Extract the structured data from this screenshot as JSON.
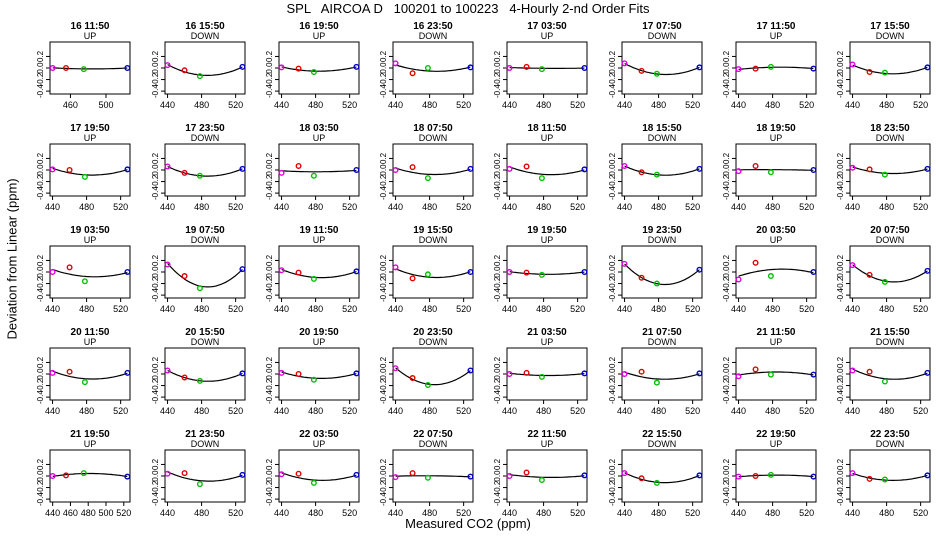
{
  "title": "SPL   AIRCOA D   100201 to 100223   4-Hourly 2-nd Order Fits",
  "xlabel": "Measured CO2 (ppm)",
  "ylabel": "Deviation from Linear (ppm)",
  "colors": {
    "magenta": "#e000e0",
    "red": "#e00000",
    "green": "#00c000",
    "blue": "#0000c8",
    "line": "#000000"
  },
  "chart_data": {
    "type": "scatter",
    "ylim": [
      -0.45,
      0.45
    ],
    "yticks": [
      "-0.4",
      "-0.2",
      "0.0",
      "0.2"
    ],
    "yticks_values": [
      -0.4,
      -0.2,
      0.0,
      0.2
    ],
    "point_colors": [
      "magenta",
      "red",
      "green",
      "blue"
    ],
    "panels": [
      {
        "title": "16 11:50",
        "label": "UP",
        "x": [
          440,
          455,
          475,
          524
        ],
        "y": [
          0.0,
          0.0,
          -0.02,
          0.0
        ],
        "xlim": [
          437,
          527
        ],
        "xticks": [
          460,
          500
        ]
      },
      {
        "title": "16 15:50",
        "label": "DOWN",
        "x": [
          440,
          460,
          478,
          528
        ],
        "y": [
          0.05,
          -0.04,
          -0.14,
          0.02
        ],
        "xlim": [
          437,
          531
        ],
        "xticks": [
          440,
          480,
          520
        ]
      },
      {
        "title": "16 19:50",
        "label": "UP",
        "x": [
          440,
          460,
          478,
          528
        ],
        "y": [
          0.01,
          -0.01,
          -0.07,
          0.02
        ],
        "xlim": [
          437,
          531
        ],
        "xticks": [
          440,
          480,
          520
        ]
      },
      {
        "title": "16 23:50",
        "label": "DOWN",
        "x": [
          440,
          460,
          478,
          528
        ],
        "y": [
          0.08,
          -0.09,
          0.0,
          0.01
        ],
        "xlim": [
          437,
          531
        ],
        "xticks": [
          440,
          480,
          520
        ]
      },
      {
        "title": "17 03:50",
        "label": "UP",
        "x": [
          440,
          460,
          478,
          528
        ],
        "y": [
          0.0,
          0.02,
          -0.02,
          0.0
        ],
        "xlim": [
          437,
          531
        ],
        "xticks": [
          440,
          480,
          520
        ]
      },
      {
        "title": "17 07:50",
        "label": "DOWN",
        "x": [
          440,
          460,
          478,
          528
        ],
        "y": [
          0.08,
          -0.05,
          -0.1,
          0.01
        ],
        "xlim": [
          437,
          531
        ],
        "xticks": [
          440,
          480,
          520
        ]
      },
      {
        "title": "17 11:50",
        "label": "UP",
        "x": [
          440,
          460,
          478,
          528
        ],
        "y": [
          -0.02,
          -0.01,
          0.02,
          -0.01
        ],
        "xlim": [
          437,
          531
        ],
        "xticks": [
          440,
          480,
          520
        ]
      },
      {
        "title": "17 15:50",
        "label": "DOWN",
        "x": [
          440,
          460,
          478,
          528
        ],
        "y": [
          0.06,
          -0.07,
          -0.08,
          0.01
        ],
        "xlim": [
          437,
          531
        ],
        "xticks": [
          440,
          480,
          520
        ]
      },
      {
        "title": "17 19:50",
        "label": "UP",
        "x": [
          440,
          460,
          478,
          528
        ],
        "y": [
          0.01,
          0.0,
          -0.12,
          0.01
        ],
        "xlim": [
          437,
          531
        ],
        "xticks": [
          440,
          480,
          520
        ]
      },
      {
        "title": "17 23:50",
        "label": "DOWN",
        "x": [
          440,
          460,
          478,
          528
        ],
        "y": [
          0.06,
          -0.05,
          -0.1,
          0.02
        ],
        "xlim": [
          437,
          531
        ],
        "xticks": [
          440,
          480,
          520
        ]
      },
      {
        "title": "18 03:50",
        "label": "UP",
        "x": [
          440,
          460,
          478,
          528
        ],
        "y": [
          -0.05,
          0.07,
          -0.1,
          0.0
        ],
        "xlim": [
          437,
          531
        ],
        "xticks": [
          440,
          480,
          520
        ]
      },
      {
        "title": "18 07:50",
        "label": "DOWN",
        "x": [
          440,
          460,
          478,
          528
        ],
        "y": [
          0.0,
          0.05,
          -0.14,
          0.02
        ],
        "xlim": [
          437,
          531
        ],
        "xticks": [
          440,
          480,
          520
        ]
      },
      {
        "title": "18 11:50",
        "label": "UP",
        "x": [
          440,
          460,
          478,
          528
        ],
        "y": [
          0.02,
          0.06,
          -0.14,
          0.01
        ],
        "xlim": [
          437,
          531
        ],
        "xticks": [
          440,
          480,
          520
        ]
      },
      {
        "title": "18 15:50",
        "label": "DOWN",
        "x": [
          440,
          460,
          478,
          528
        ],
        "y": [
          0.07,
          -0.04,
          -0.08,
          0.02
        ],
        "xlim": [
          437,
          531
        ],
        "xticks": [
          440,
          480,
          520
        ]
      },
      {
        "title": "18 19:50",
        "label": "UP",
        "x": [
          440,
          460,
          478,
          528
        ],
        "y": [
          -0.02,
          0.07,
          -0.04,
          0.0
        ],
        "xlim": [
          437,
          531
        ],
        "xticks": [
          440,
          480,
          520
        ]
      },
      {
        "title": "18 23:50",
        "label": "DOWN",
        "x": [
          440,
          460,
          478,
          528
        ],
        "y": [
          0.04,
          0.01,
          -0.08,
          0.02
        ],
        "xlim": [
          437,
          531
        ],
        "xticks": [
          440,
          480,
          520
        ]
      },
      {
        "title": "19 03:50",
        "label": "UP",
        "x": [
          440,
          460,
          478,
          528
        ],
        "y": [
          0.0,
          0.08,
          -0.16,
          0.0
        ],
        "xlim": [
          437,
          531
        ],
        "xticks": [
          440,
          480,
          520
        ]
      },
      {
        "title": "19 07:50",
        "label": "DOWN",
        "x": [
          440,
          460,
          478,
          528
        ],
        "y": [
          0.13,
          -0.07,
          -0.28,
          0.05
        ],
        "xlim": [
          437,
          531
        ],
        "xticks": [
          440,
          480,
          520
        ]
      },
      {
        "title": "19 11:50",
        "label": "UP",
        "x": [
          440,
          460,
          478,
          528
        ],
        "y": [
          0.03,
          -0.01,
          -0.12,
          0.01
        ],
        "xlim": [
          437,
          531
        ],
        "xticks": [
          440,
          480,
          520
        ]
      },
      {
        "title": "19 15:50",
        "label": "DOWN",
        "x": [
          440,
          460,
          478,
          528
        ],
        "y": [
          0.08,
          -0.11,
          -0.04,
          0.0
        ],
        "xlim": [
          437,
          531
        ],
        "xticks": [
          440,
          480,
          520
        ]
      },
      {
        "title": "19 19:50",
        "label": "UP",
        "x": [
          440,
          460,
          478,
          528
        ],
        "y": [
          0.0,
          -0.01,
          -0.05,
          0.0
        ],
        "xlim": [
          437,
          531
        ],
        "xticks": [
          440,
          480,
          520
        ]
      },
      {
        "title": "19 23:50",
        "label": "DOWN",
        "x": [
          440,
          460,
          478,
          528
        ],
        "y": [
          0.14,
          -0.1,
          -0.2,
          0.04
        ],
        "xlim": [
          437,
          531
        ],
        "xticks": [
          440,
          480,
          520
        ]
      },
      {
        "title": "20 03:50",
        "label": "UP",
        "x": [
          440,
          460,
          478,
          528
        ],
        "y": [
          -0.13,
          0.16,
          -0.07,
          0.0
        ],
        "xlim": [
          437,
          531
        ],
        "xticks": [
          440,
          480,
          520
        ]
      },
      {
        "title": "20 07:50",
        "label": "DOWN",
        "x": [
          440,
          460,
          478,
          528
        ],
        "y": [
          0.12,
          -0.05,
          -0.17,
          0.02
        ],
        "xlim": [
          437,
          531
        ],
        "xticks": [
          440,
          480,
          520
        ]
      },
      {
        "title": "20 11:50",
        "label": "UP",
        "x": [
          440,
          460,
          478,
          528
        ],
        "y": [
          0.02,
          0.04,
          -0.14,
          0.02
        ],
        "xlim": [
          437,
          531
        ],
        "xticks": [
          440,
          480,
          520
        ]
      },
      {
        "title": "20 15:50",
        "label": "DOWN",
        "x": [
          440,
          460,
          478,
          528
        ],
        "y": [
          0.06,
          -0.06,
          -0.12,
          0.01
        ],
        "xlim": [
          437,
          531
        ],
        "xticks": [
          440,
          480,
          520
        ]
      },
      {
        "title": "20 19:50",
        "label": "UP",
        "x": [
          440,
          460,
          478,
          528
        ],
        "y": [
          0.02,
          0.0,
          -0.1,
          0.01
        ],
        "xlim": [
          437,
          531
        ],
        "xticks": [
          440,
          480,
          520
        ]
      },
      {
        "title": "20 23:50",
        "label": "DOWN",
        "x": [
          440,
          460,
          478,
          528
        ],
        "y": [
          0.1,
          -0.07,
          -0.19,
          0.06
        ],
        "xlim": [
          437,
          531
        ],
        "xticks": [
          440,
          480,
          520
        ]
      },
      {
        "title": "21 03:50",
        "label": "UP",
        "x": [
          440,
          460,
          478,
          528
        ],
        "y": [
          0.0,
          0.02,
          -0.05,
          0.01
        ],
        "xlim": [
          437,
          531
        ],
        "xticks": [
          440,
          480,
          520
        ]
      },
      {
        "title": "21 07:50",
        "label": "DOWN",
        "x": [
          440,
          460,
          478,
          528
        ],
        "y": [
          0.0,
          0.04,
          -0.15,
          0.01
        ],
        "xlim": [
          437,
          531
        ],
        "xticks": [
          440,
          480,
          520
        ]
      },
      {
        "title": "21 11:50",
        "label": "UP",
        "x": [
          440,
          460,
          478,
          528
        ],
        "y": [
          -0.04,
          0.08,
          -0.01,
          -0.01
        ],
        "xlim": [
          437,
          531
        ],
        "xticks": [
          440,
          480,
          520
        ]
      },
      {
        "title": "21 15:50",
        "label": "DOWN",
        "x": [
          440,
          460,
          478,
          528
        ],
        "y": [
          0.06,
          0.04,
          -0.13,
          0.02
        ],
        "xlim": [
          437,
          531
        ],
        "xticks": [
          440,
          480,
          520
        ]
      },
      {
        "title": "21 19:50",
        "label": "UP",
        "x": [
          440,
          455,
          475,
          524
        ],
        "y": [
          0.0,
          0.01,
          0.05,
          -0.01
        ],
        "xlim": [
          437,
          527
        ],
        "xticks": [
          440,
          460,
          480,
          500,
          520
        ]
      },
      {
        "title": "21 23:50",
        "label": "DOWN",
        "x": [
          440,
          460,
          478,
          528
        ],
        "y": [
          0.04,
          0.05,
          -0.14,
          0.02
        ],
        "xlim": [
          437,
          531
        ],
        "xticks": [
          440,
          480,
          520
        ]
      },
      {
        "title": "22 03:50",
        "label": "UP",
        "x": [
          440,
          460,
          478,
          528
        ],
        "y": [
          0.03,
          0.04,
          -0.12,
          0.02
        ],
        "xlim": [
          437,
          531
        ],
        "xticks": [
          440,
          480,
          520
        ]
      },
      {
        "title": "22 07:50",
        "label": "DOWN",
        "x": [
          440,
          460,
          478,
          528
        ],
        "y": [
          -0.02,
          0.05,
          -0.03,
          -0.01
        ],
        "xlim": [
          437,
          531
        ],
        "xticks": [
          440,
          480,
          520
        ]
      },
      {
        "title": "22 11:50",
        "label": "UP",
        "x": [
          440,
          460,
          478,
          528
        ],
        "y": [
          0.0,
          0.06,
          -0.07,
          0.01
        ],
        "xlim": [
          437,
          531
        ],
        "xticks": [
          440,
          480,
          520
        ]
      },
      {
        "title": "22 15:50",
        "label": "DOWN",
        "x": [
          440,
          460,
          478,
          528
        ],
        "y": [
          0.05,
          -0.04,
          -0.12,
          0.01
        ],
        "xlim": [
          437,
          531
        ],
        "xticks": [
          440,
          480,
          520
        ]
      },
      {
        "title": "22 19:50",
        "label": "UP",
        "x": [
          440,
          460,
          478,
          528
        ],
        "y": [
          -0.01,
          0.0,
          0.02,
          -0.01
        ],
        "xlim": [
          437,
          531
        ],
        "xticks": [
          440,
          480,
          520
        ]
      },
      {
        "title": "22 23:50",
        "label": "DOWN",
        "x": [
          440,
          460,
          478,
          528
        ],
        "y": [
          0.05,
          -0.05,
          -0.06,
          0.01
        ],
        "xlim": [
          437,
          531
        ],
        "xticks": [
          440,
          480,
          520
        ]
      }
    ]
  }
}
